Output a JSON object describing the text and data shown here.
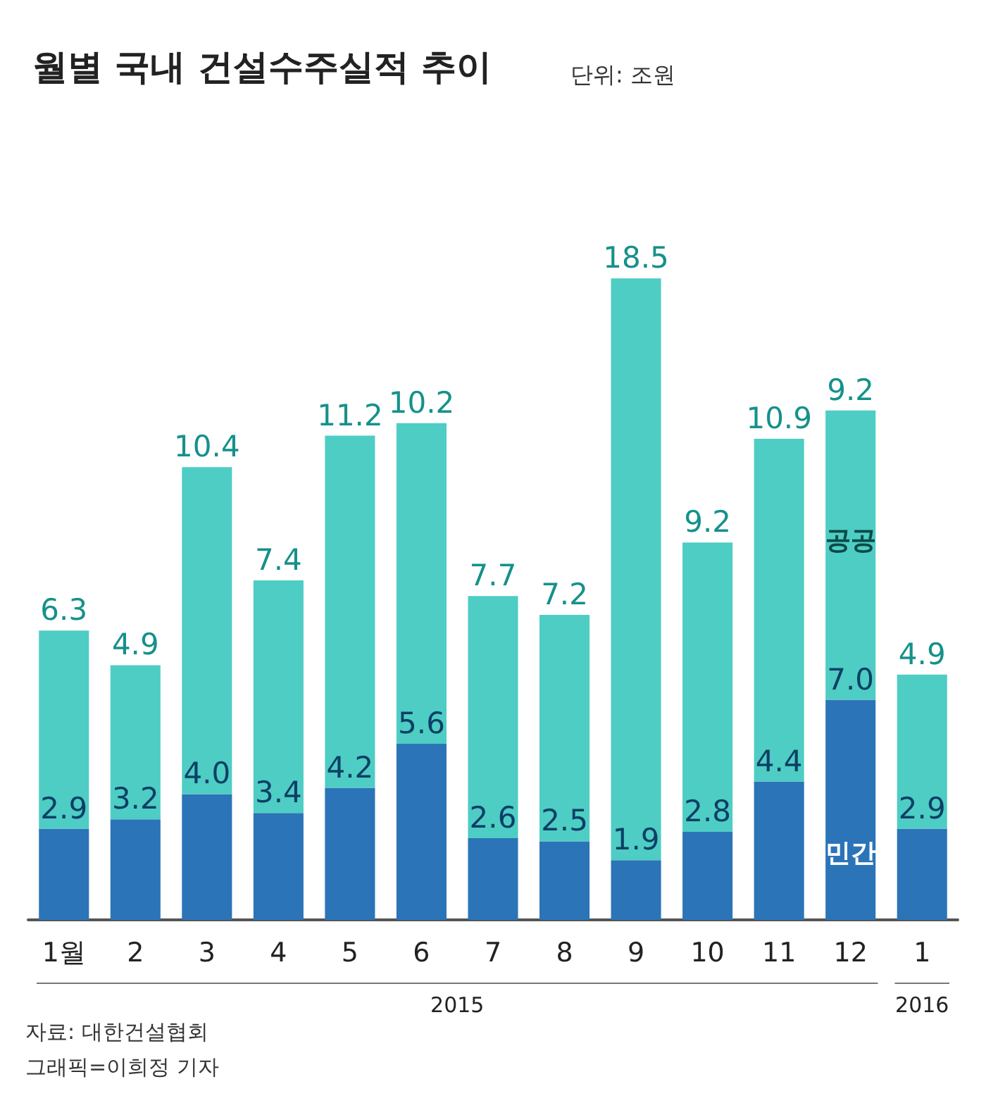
{
  "chart_data": {
    "type": "bar",
    "title": "월별 국내 건설수주실적 추이",
    "subtitle": "단위: 조원",
    "categories": [
      "1월",
      "2",
      "3",
      "4",
      "5",
      "6",
      "7",
      "8",
      "9",
      "10",
      "11",
      "12",
      "1"
    ],
    "series": [
      {
        "name": "민간",
        "color": "#2b74b8",
        "values": [
          2.9,
          3.2,
          4.0,
          3.4,
          4.2,
          5.6,
          2.6,
          2.5,
          1.9,
          2.8,
          4.4,
          7.0,
          2.9
        ],
        "value_labels": [
          "2.9",
          "3.2",
          "4.0",
          "3.4",
          "4.2",
          "5.6",
          "2.6",
          "2.5",
          "1.9",
          "2.8",
          "4.4",
          "7.0",
          "2.9"
        ]
      },
      {
        "name": "공공",
        "color": "#4ecdc4",
        "values": [
          6.3,
          4.9,
          10.4,
          7.4,
          11.2,
          10.2,
          7.7,
          7.2,
          18.5,
          9.2,
          10.9,
          9.2,
          4.9
        ],
        "value_labels": [
          "6.3",
          "4.9",
          "10.4",
          "7.4",
          "11.2",
          "10.2",
          "7.7",
          "7.2",
          "18.5",
          "9.2",
          "10.9",
          "9.2",
          "4.9"
        ]
      }
    ],
    "stacked": true,
    "legend": false,
    "annotations": [
      "2015",
      "2016",
      "자료: 대한건설협회",
      "그래픽=이희정 기자"
    ]
  }
}
